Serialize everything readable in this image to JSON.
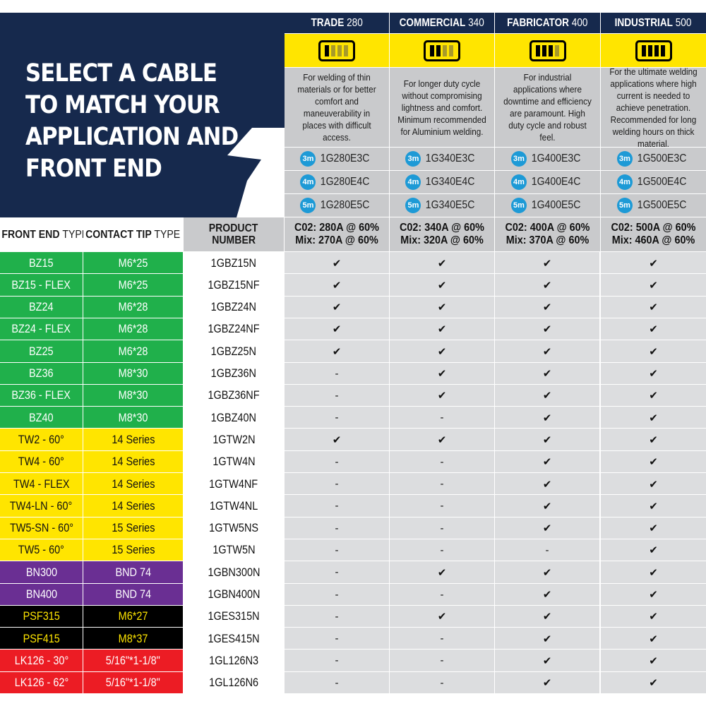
{
  "title_lines": [
    "SELECT A CABLE",
    "TO MATCH YOUR",
    "APPLICATION AND",
    "FRONT END"
  ],
  "colors": {
    "navy": "#16294d",
    "yellow": "#ffe500",
    "grey": "#c9cacc",
    "light_grey": "#dcdddf",
    "badge_blue": "#1d9ad6",
    "group_green": "#20b04b",
    "group_yellow": "#ffe500",
    "group_purple": "#6a2f93",
    "group_black": "#000000",
    "group_red": "#ec1c24"
  },
  "models": [
    {
      "name_bold": "TRADE",
      "name_num": "280",
      "icon": "cable-gauge-icon",
      "gauge_level": 1,
      "description": "For welding of thin materials or for better comfort and maneuverability in places with difficult access.",
      "products": [
        {
          "badge": "3m",
          "code": "1G280E3C"
        },
        {
          "badge": "4m",
          "code": "1G280E4C"
        },
        {
          "badge": "5m",
          "code": "1G280E5C"
        }
      ],
      "rating_co2": "C02: 280A @ 60%",
      "rating_mix": "Mix: 270A @ 60%"
    },
    {
      "name_bold": "COMMERCIAL",
      "name_num": "340",
      "icon": "cable-gauge-icon",
      "gauge_level": 2,
      "description": "For longer duty cycle without compromising lightness and comfort. Minimum recommended for Aluminium welding.",
      "products": [
        {
          "badge": "3m",
          "code": "1G340E3C"
        },
        {
          "badge": "4m",
          "code": "1G340E4C"
        },
        {
          "badge": "5m",
          "code": "1G340E5C"
        }
      ],
      "rating_co2": "C02: 340A @ 60%",
      "rating_mix": "Mix: 320A @ 60%"
    },
    {
      "name_bold": "FABRICATOR",
      "name_num": "400",
      "icon": "cable-gauge-icon",
      "gauge_level": 3,
      "description": "For industrial applications where downtime and efficiency are paramount. High duty cycle and robust feel.",
      "products": [
        {
          "badge": "3m",
          "code": "1G400E3C"
        },
        {
          "badge": "4m",
          "code": "1G400E4C"
        },
        {
          "badge": "5m",
          "code": "1G400E5C"
        }
      ],
      "rating_co2": "C02: 400A @ 60%",
      "rating_mix": "Mix: 370A @ 60%"
    },
    {
      "name_bold": "INDUSTRIAL",
      "name_num": "500",
      "icon": "cable-gauge-icon",
      "gauge_level": 4,
      "description": "For the ultimate welding applications where high current is needed to achieve penetration. Recommended for long welding hours on thick material.",
      "products": [
        {
          "badge": "3m",
          "code": "1G500E3C"
        },
        {
          "badge": "4m",
          "code": "1G500E4C"
        },
        {
          "badge": "5m",
          "code": "1G500E5C"
        }
      ],
      "rating_co2": "C02: 500A @ 60%",
      "rating_mix": "Mix: 460A @ 60%"
    }
  ],
  "table_header": {
    "front_bold": "FRONT END",
    "front_reg": "TYPE",
    "tip_bold": "CONTACT TIP",
    "tip_reg": "TYPE",
    "product_line1": "PRODUCT",
    "product_line2": "NUMBER"
  },
  "rows": [
    {
      "front": "BZ15",
      "tip": "M6*25",
      "product": "1GBZ15N",
      "group": "green",
      "marks": [
        "✔",
        "✔",
        "✔",
        "✔"
      ]
    },
    {
      "front": "BZ15 - FLEX",
      "tip": "M6*25",
      "product": "1GBZ15NF",
      "group": "green",
      "marks": [
        "✔",
        "✔",
        "✔",
        "✔"
      ]
    },
    {
      "front": "BZ24",
      "tip": "M6*28",
      "product": "1GBZ24N",
      "group": "green",
      "marks": [
        "✔",
        "✔",
        "✔",
        "✔"
      ]
    },
    {
      "front": "BZ24 - FLEX",
      "tip": "M6*28",
      "product": "1GBZ24NF",
      "group": "green",
      "marks": [
        "✔",
        "✔",
        "✔",
        "✔"
      ]
    },
    {
      "front": "BZ25",
      "tip": "M6*28",
      "product": "1GBZ25N",
      "group": "green",
      "marks": [
        "✔",
        "✔",
        "✔",
        "✔"
      ]
    },
    {
      "front": "BZ36",
      "tip": "M8*30",
      "product": "1GBZ36N",
      "group": "green",
      "marks": [
        "-",
        "✔",
        "✔",
        "✔"
      ]
    },
    {
      "front": "BZ36 - FLEX",
      "tip": "M8*30",
      "product": "1GBZ36NF",
      "group": "green",
      "marks": [
        "-",
        "✔",
        "✔",
        "✔"
      ]
    },
    {
      "front": "BZ40",
      "tip": "M8*30",
      "product": "1GBZ40N",
      "group": "green",
      "marks": [
        "-",
        "-",
        "✔",
        "✔"
      ]
    },
    {
      "front": "TW2 - 60°",
      "tip": "14 Series",
      "product": "1GTW2N",
      "group": "yellow",
      "marks": [
        "✔",
        "✔",
        "✔",
        "✔"
      ]
    },
    {
      "front": "TW4 - 60°",
      "tip": "14 Series",
      "product": "1GTW4N",
      "group": "yellow",
      "marks": [
        "-",
        "-",
        "✔",
        "✔"
      ]
    },
    {
      "front": "TW4 - FLEX",
      "tip": "14 Series",
      "product": "1GTW4NF",
      "group": "yellow",
      "marks": [
        "-",
        "-",
        "✔",
        "✔"
      ]
    },
    {
      "front": "TW4-LN - 60°",
      "tip": "14 Series",
      "product": "1GTW4NL",
      "group": "yellow",
      "marks": [
        "-",
        "-",
        "✔",
        "✔"
      ]
    },
    {
      "front": "TW5-SN - 60°",
      "tip": "15 Series",
      "product": "1GTW5NS",
      "group": "yellow",
      "marks": [
        "-",
        "-",
        "✔",
        "✔"
      ]
    },
    {
      "front": "TW5 - 60°",
      "tip": "15 Series",
      "product": "1GTW5N",
      "group": "yellow",
      "marks": [
        "-",
        "-",
        "-",
        "✔"
      ]
    },
    {
      "front": "BN300",
      "tip": "BND 74",
      "product": "1GBN300N",
      "group": "purple",
      "marks": [
        "-",
        "✔",
        "✔",
        "✔"
      ]
    },
    {
      "front": "BN400",
      "tip": "BND 74",
      "product": "1GBN400N",
      "group": "purple",
      "marks": [
        "-",
        "-",
        "✔",
        "✔"
      ]
    },
    {
      "front": "PSF315",
      "tip": "M6*27",
      "product": "1GES315N",
      "group": "black",
      "marks": [
        "-",
        "✔",
        "✔",
        "✔"
      ]
    },
    {
      "front": "PSF415",
      "tip": "M8*37",
      "product": "1GES415N",
      "group": "black",
      "marks": [
        "-",
        "-",
        "✔",
        "✔"
      ]
    },
    {
      "front": "LK126 - 30°",
      "tip": "5/16\"*1-1/8\"",
      "product": "1GL126N3",
      "group": "red",
      "marks": [
        "-",
        "-",
        "✔",
        "✔"
      ]
    },
    {
      "front": "LK126 - 62°",
      "tip": "5/16\"*1-1/8\"",
      "product": "1GL126N6",
      "group": "red",
      "marks": [
        "-",
        "-",
        "✔",
        "✔"
      ]
    }
  ]
}
